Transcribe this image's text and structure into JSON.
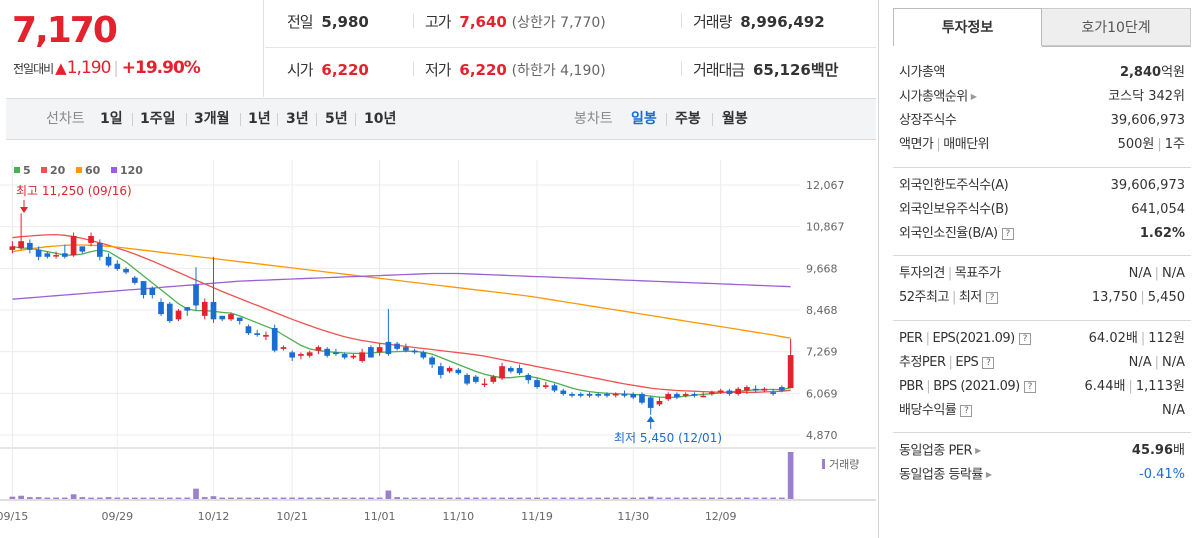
{
  "quote": {
    "current_price": "7,170",
    "change_label": "전일대비",
    "change_arrow": "▲",
    "change_amount": "1,190",
    "change_sep": "|",
    "change_percent": "+19.90%"
  },
  "stats": {
    "prev_close": {
      "label": "전일",
      "value": "5,980"
    },
    "high": {
      "label": "고가",
      "value": "7,640",
      "sub": "(상한가 7,770)"
    },
    "volume": {
      "label": "거래량",
      "value": "8,996,492"
    },
    "open": {
      "label": "시가",
      "value": "6,220"
    },
    "low": {
      "label": "저가",
      "value": "6,220",
      "sub": "(하한가 4,190)"
    },
    "amount": {
      "label": "거래대금",
      "value": "65,126",
      "unit": "백만"
    }
  },
  "toolbar": {
    "line_label": "선차트",
    "line_periods": [
      "1일",
      "1주일",
      "3개월",
      "1년",
      "3년",
      "5년",
      "10년"
    ],
    "candle_label": "봉차트",
    "candle_periods": [
      "일봉",
      "주봉",
      "월봉"
    ],
    "active_candle": "일봉"
  },
  "chart_data": {
    "type": "candlestick",
    "legend": [
      {
        "name": "5",
        "color": "#4caf50"
      },
      {
        "name": "20",
        "color": "#ef5350"
      },
      {
        "name": "60",
        "color": "#ff9800"
      },
      {
        "name": "120",
        "color": "#9c5fd6"
      }
    ],
    "y_ticks": [
      "12,067",
      "10,867",
      "9,668",
      "8,468",
      "7,269",
      "6,069",
      "4,870"
    ],
    "y_range": [
      4870,
      12067
    ],
    "x_ticks": [
      "09/15",
      "09/29",
      "10/12",
      "10/21",
      "11/01",
      "11/10",
      "11/19",
      "11/30",
      "12/09"
    ],
    "high_annotation": "최고 11,250 (09/16)",
    "low_annotation": "최저 5,450 (12/01)",
    "volume_label": "거래량",
    "candles": [
      [
        10200,
        10300,
        10100,
        10450
      ],
      [
        10250,
        10450,
        10200,
        11250
      ],
      [
        10400,
        10200,
        10100,
        10500
      ],
      [
        10200,
        10000,
        9900,
        10300
      ],
      [
        10100,
        10000,
        9950,
        10150
      ],
      [
        10050,
        10050,
        9950,
        10150
      ],
      [
        10100,
        10000,
        9950,
        10350
      ],
      [
        10050,
        10600,
        10000,
        10700
      ],
      [
        10300,
        10150,
        10100,
        10300
      ],
      [
        10400,
        10600,
        10300,
        10700
      ],
      [
        10400,
        10000,
        9900,
        10500
      ],
      [
        10000,
        9750,
        9700,
        10100
      ],
      [
        9800,
        9650,
        9600,
        9900
      ],
      [
        9650,
        9550,
        9500,
        9700
      ],
      [
        9400,
        9250,
        9200,
        9450
      ],
      [
        9300,
        8900,
        8800,
        9300
      ],
      [
        9100,
        8900,
        8800,
        9150
      ],
      [
        8700,
        8350,
        8300,
        8800
      ],
      [
        8650,
        8150,
        8100,
        8700
      ],
      [
        8200,
        8450,
        8150,
        8500
      ],
      [
        8550,
        8450,
        8300,
        8550
      ],
      [
        9200,
        8600,
        8450,
        9700
      ],
      [
        8300,
        8700,
        8200,
        8800
      ],
      [
        8700,
        8200,
        8100,
        10000
      ],
      [
        8300,
        8200,
        8150,
        8300
      ],
      [
        8200,
        8350,
        8150,
        8400
      ],
      [
        8250,
        8150,
        8050,
        8250
      ],
      [
        8000,
        7800,
        7750,
        8050
      ],
      [
        7800,
        7750,
        7700,
        7900
      ],
      [
        7700,
        7750,
        7600,
        7850
      ],
      [
        7950,
        7300,
        7250,
        8050
      ],
      [
        7350,
        7400,
        7300,
        7450
      ],
      [
        7250,
        7100,
        7000,
        7300
      ],
      [
        7150,
        7200,
        7050,
        7250
      ],
      [
        7150,
        7250,
        7100,
        7300
      ],
      [
        7300,
        7400,
        7200,
        7450
      ],
      [
        7350,
        7150,
        7100,
        7400
      ],
      [
        7250,
        7200,
        7150,
        7350
      ],
      [
        7200,
        7100,
        7050,
        7250
      ],
      [
        7100,
        7150,
        7050,
        7200
      ],
      [
        7000,
        7250,
        6950,
        7350
      ],
      [
        7400,
        7100,
        7100,
        7450
      ],
      [
        7250,
        7400,
        7150,
        7500
      ],
      [
        7550,
        7200,
        7150,
        8500
      ],
      [
        7500,
        7350,
        7300,
        7550
      ],
      [
        7400,
        7300,
        7250,
        7500
      ],
      [
        7300,
        7250,
        7200,
        7350
      ],
      [
        7250,
        7100,
        7050,
        7300
      ],
      [
        7100,
        6900,
        6800,
        7150
      ],
      [
        6850,
        6600,
        6500,
        6950
      ],
      [
        6700,
        6800,
        6650,
        6850
      ],
      [
        6750,
        6650,
        6600,
        6800
      ],
      [
        6600,
        6350,
        6300,
        6650
      ],
      [
        6550,
        6400,
        6350,
        6600
      ],
      [
        6350,
        6350,
        6250,
        6500
      ],
      [
        6400,
        6550,
        6350,
        6600
      ],
      [
        6500,
        6850,
        6450,
        6950
      ],
      [
        6800,
        6700,
        6650,
        6850
      ],
      [
        6800,
        6650,
        6600,
        6900
      ],
      [
        6600,
        6450,
        6350,
        6650
      ],
      [
        6450,
        6250,
        6200,
        6500
      ],
      [
        6250,
        6300,
        6200,
        6400
      ],
      [
        6300,
        6150,
        6100,
        6350
      ],
      [
        6150,
        6050,
        6000,
        6200
      ],
      [
        6050,
        6000,
        5950,
        6100
      ],
      [
        6050,
        6000,
        5950,
        6100
      ],
      [
        6050,
        6000,
        5950,
        6100
      ],
      [
        6050,
        6000,
        5950,
        6100
      ],
      [
        6050,
        6000,
        5950,
        6100
      ],
      [
        6050,
        6050,
        5950,
        6100
      ],
      [
        6050,
        6000,
        5950,
        6150
      ],
      [
        6050,
        5950,
        5900,
        6100
      ],
      [
        6050,
        5800,
        5750,
        6100
      ],
      [
        5950,
        5650,
        5450,
        6000
      ],
      [
        5750,
        5850,
        5700,
        5950
      ],
      [
        5900,
        6050,
        5850,
        6100
      ],
      [
        6050,
        5950,
        5900,
        6100
      ],
      [
        6000,
        6050,
        5950,
        6100
      ],
      [
        6050,
        6000,
        5950,
        6100
      ],
      [
        6000,
        6000,
        5950,
        6100
      ],
      [
        6050,
        6100,
        6000,
        6150
      ],
      [
        6100,
        6150,
        6050,
        6200
      ],
      [
        6150,
        6050,
        6000,
        6200
      ],
      [
        6050,
        6200,
        6000,
        6250
      ],
      [
        6150,
        6250,
        6050,
        6300
      ],
      [
        6200,
        6150,
        6100,
        6300
      ],
      [
        6150,
        6200,
        6100,
        6250
      ],
      [
        6100,
        6050,
        6000,
        6200
      ],
      [
        6250,
        6150,
        6100,
        6300
      ],
      [
        6220,
        7170,
        6220,
        7640
      ]
    ],
    "volumes": [
      5,
      7,
      4,
      4,
      3,
      3,
      3,
      10,
      4,
      3,
      3,
      4,
      3,
      3,
      3,
      3,
      3,
      3,
      3,
      3,
      3,
      22,
      4,
      6,
      3,
      3,
      3,
      3,
      3,
      3,
      3,
      3,
      3,
      3,
      3,
      3,
      3,
      3,
      3,
      3,
      3,
      3,
      3,
      18,
      4,
      3,
      3,
      3,
      3,
      3,
      3,
      3,
      3,
      3,
      3,
      3,
      3,
      3,
      3,
      3,
      3,
      3,
      3,
      3,
      3,
      3,
      3,
      3,
      3,
      3,
      3,
      3,
      3,
      5,
      3,
      3,
      3,
      3,
      3,
      3,
      3,
      3,
      3,
      3,
      3,
      3,
      3,
      3,
      3,
      100
    ],
    "ma5": [
      10300,
      10250,
      10250,
      10200,
      10150,
      10100,
      10050,
      10050,
      10080,
      10150,
      10200,
      10150,
      10000,
      9850,
      9650,
      9450,
      9250,
      9050,
      8850,
      8650,
      8500,
      8450,
      8450,
      8430,
      8400,
      8380,
      8300,
      8200,
      8100,
      8000,
      7900,
      7750,
      7600,
      7450,
      7350,
      7300,
      7270,
      7250,
      7230,
      7220,
      7220,
      7230,
      7250,
      7260,
      7270,
      7280,
      7280,
      7250,
      7200,
      7100,
      7000,
      6900,
      6800,
      6700,
      6620,
      6560,
      6520,
      6520,
      6550,
      6560,
      6520,
      6450,
      6380,
      6300,
      6220,
      6160,
      6120,
      6090,
      6070,
      6060,
      6050,
      6040,
      6020,
      5990,
      5960,
      5950,
      5960,
      5990,
      6020,
      6040,
      6060,
      6080,
      6110,
      6130,
      6150,
      6170,
      6180,
      6180,
      6180,
      6230
    ],
    "ma20": [
      10550,
      10580,
      10600,
      10620,
      10630,
      10640,
      10620,
      10580,
      10530,
      10470,
      10400,
      10330,
      10250,
      10170,
      10080,
      9980,
      9880,
      9770,
      9660,
      9550,
      9440,
      9330,
      9220,
      9110,
      9000,
      8900,
      8800,
      8700,
      8600,
      8500,
      8400,
      8300,
      8200,
      8110,
      8020,
      7930,
      7850,
      7770,
      7700,
      7640,
      7590,
      7550,
      7510,
      7480,
      7450,
      7420,
      7390,
      7360,
      7330,
      7300,
      7270,
      7240,
      7210,
      7180,
      7140,
      7090,
      7040,
      6990,
      6940,
      6890,
      6840,
      6790,
      6740,
      6690,
      6640,
      6590,
      6540,
      6490,
      6440,
      6390,
      6340,
      6300,
      6260,
      6220,
      6190,
      6170,
      6150,
      6140,
      6130,
      6120,
      6110,
      6100,
      6100,
      6100,
      6100,
      6100,
      6110,
      6120,
      6130,
      6160
    ],
    "ma60": [
      10150,
      10190,
      10230,
      10260,
      10290,
      10310,
      10330,
      10340,
      10340,
      10330,
      10320,
      10300,
      10280,
      10250,
      10220,
      10190,
      10160,
      10130,
      10100,
      10070,
      10040,
      10010,
      9980,
      9950,
      9920,
      9890,
      9860,
      9830,
      9800,
      9770,
      9740,
      9710,
      9680,
      9650,
      9620,
      9590,
      9560,
      9530,
      9500,
      9470,
      9440,
      9410,
      9380,
      9350,
      9320,
      9290,
      9260,
      9230,
      9200,
      9170,
      9140,
      9110,
      9080,
      9050,
      9020,
      8990,
      8960,
      8930,
      8900,
      8870,
      8830,
      8790,
      8750,
      8710,
      8670,
      8630,
      8590,
      8550,
      8510,
      8470,
      8430,
      8390,
      8350,
      8310,
      8270,
      8230,
      8190,
      8150,
      8110,
      8070,
      8030,
      7990,
      7950,
      7910,
      7870,
      7830,
      7790,
      7750,
      7700,
      7660
    ],
    "ma120": [
      8780,
      8800,
      8820,
      8840,
      8860,
      8880,
      8900,
      8920,
      8940,
      8960,
      8980,
      9000,
      9020,
      9040,
      9060,
      9080,
      9100,
      9120,
      9140,
      9160,
      9180,
      9200,
      9220,
      9240,
      9260,
      9280,
      9300,
      9310,
      9320,
      9330,
      9340,
      9350,
      9360,
      9370,
      9380,
      9390,
      9400,
      9410,
      9420,
      9430,
      9440,
      9450,
      9460,
      9470,
      9480,
      9490,
      9500,
      9510,
      9520,
      9520,
      9520,
      9520,
      9510,
      9500,
      9490,
      9480,
      9470,
      9460,
      9450,
      9440,
      9430,
      9420,
      9410,
      9400,
      9390,
      9380,
      9370,
      9360,
      9350,
      9340,
      9330,
      9320,
      9310,
      9300,
      9290,
      9280,
      9270,
      9260,
      9250,
      9240,
      9230,
      9220,
      9210,
      9200,
      9190,
      9180,
      9170,
      9160,
      9150,
      9140
    ]
  },
  "panel": {
    "tab_invest": "투자정보",
    "tab_orderbook": "호가10단계",
    "group1": [
      {
        "k": "시가총액",
        "v_bold": "2,840",
        "v_rest": "억원"
      },
      {
        "k": "시가총액순위",
        "tri": true,
        "v": "코스닥 342위"
      },
      {
        "k": "상장주식수",
        "v": "39,606,973"
      },
      {
        "k": "액면가",
        "k2": "매매단위",
        "v": "500원",
        "v2": "1주"
      }
    ],
    "group2": [
      {
        "k": "외국인한도주식수(A)",
        "v": "39,606,973"
      },
      {
        "k": "외국인보유주식수(B)",
        "v": "641,054"
      },
      {
        "k": "외국인소진율(B/A)",
        "q": true,
        "v_bold": "1.62%"
      }
    ],
    "group3": [
      {
        "k": "투자의견",
        "k2": "목표주가",
        "v": "N/A",
        "v2": "N/A"
      },
      {
        "k": "52주최고",
        "k2": "최저",
        "q": true,
        "v": "13,750",
        "v2": "5,450"
      }
    ],
    "group4": [
      {
        "k": "PER",
        "k2": "EPS(2021.09)",
        "q": true,
        "v": "64.02배",
        "v2": "112원"
      },
      {
        "k": "추정PER",
        "k2": "EPS",
        "q": true,
        "v": "N/A",
        "v2": "N/A"
      },
      {
        "k": "PBR",
        "k2": "BPS (2021.09)",
        "q": true,
        "v": "6.44배",
        "v2": "1,113원"
      },
      {
        "k": "배당수익률",
        "q": true,
        "v": "N/A"
      }
    ],
    "group5": [
      {
        "k": "동일업종 PER",
        "tri": true,
        "v_bold": "45.96",
        "v_rest": "배"
      },
      {
        "k": "동일업종 등락률",
        "tri": true,
        "v": "-0.41%",
        "blue": true
      }
    ]
  },
  "colors": {
    "up": "#e4222e",
    "down": "#1a6dd2",
    "volume": "#9c7fd0"
  }
}
